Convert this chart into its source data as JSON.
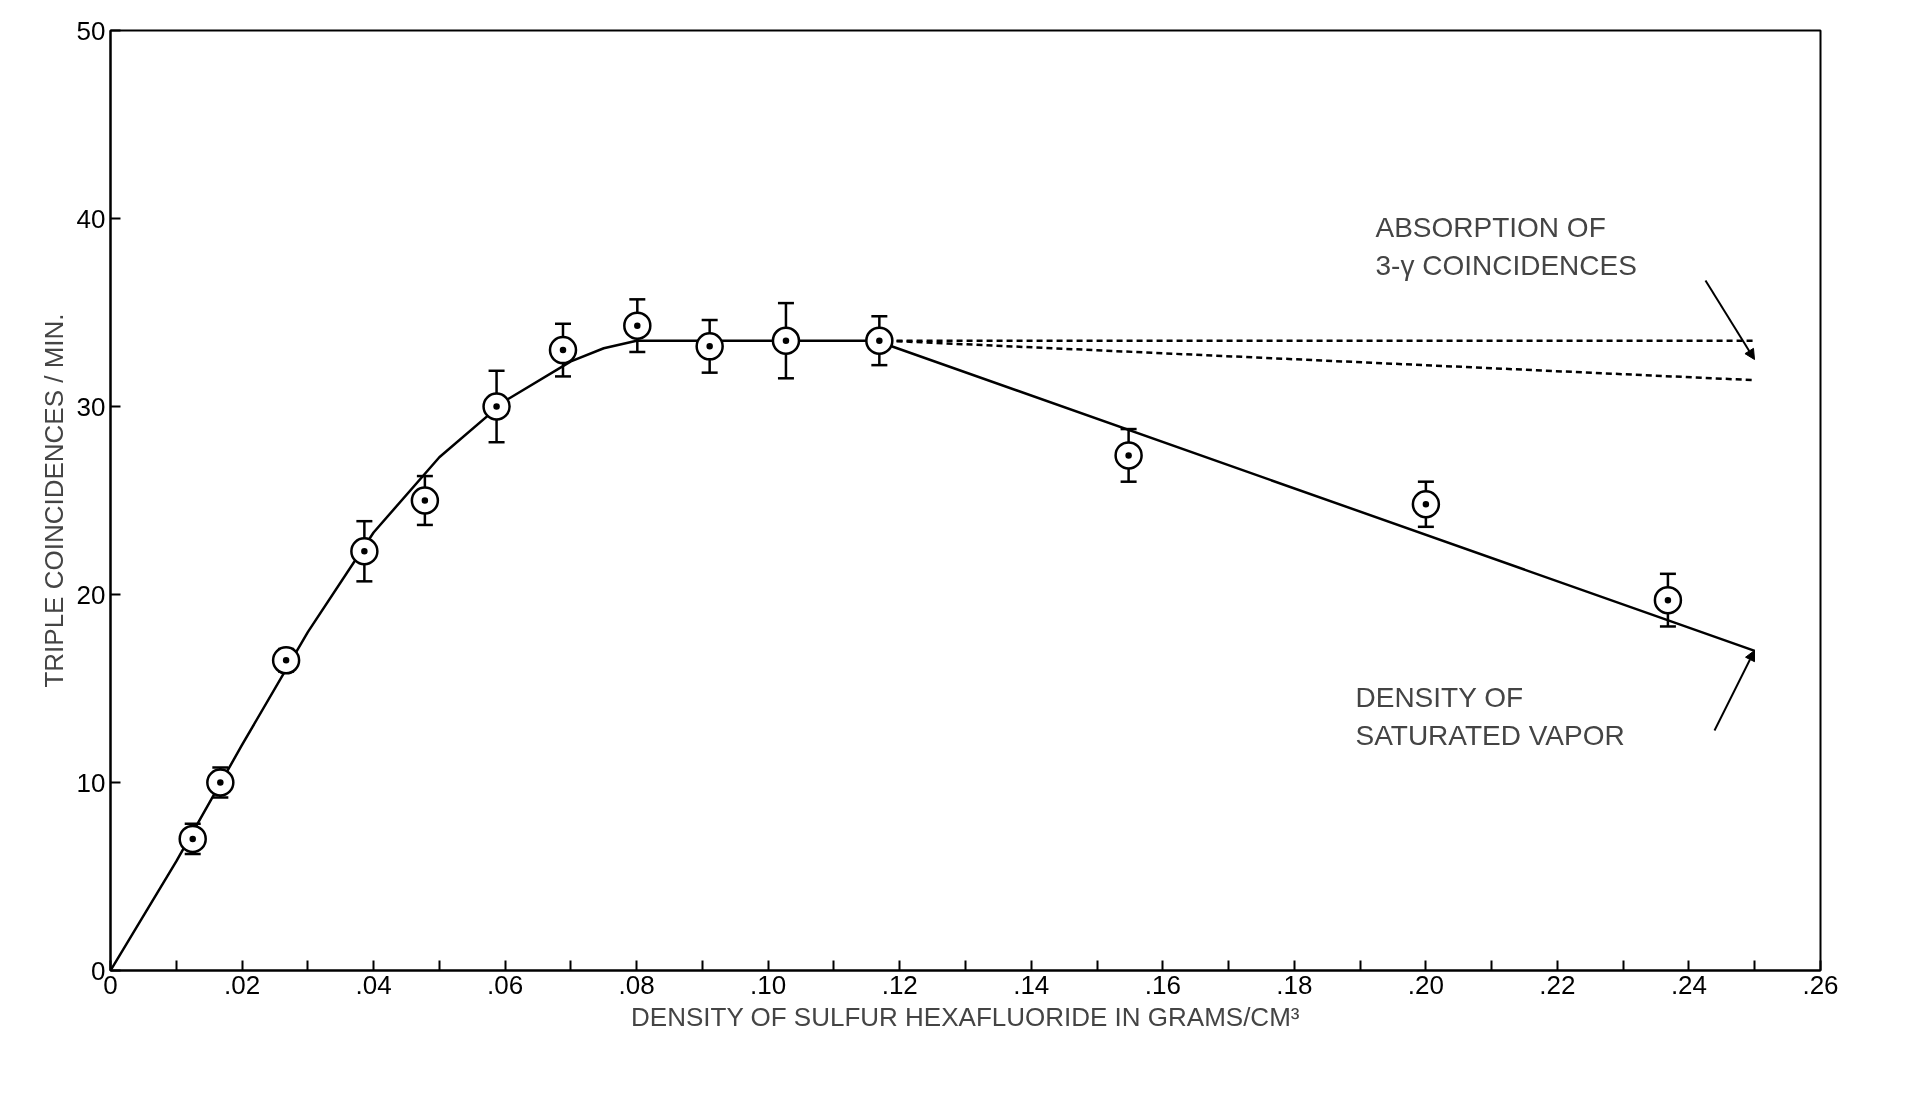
{
  "chart_data": {
    "type": "scatter",
    "xlabel": "DENSITY OF SULFUR HEXAFLUORIDE IN GRAMS/CM³",
    "ylabel": "TRIPLE COINCIDENCES / MIN.",
    "xlim": [
      0,
      0.26
    ],
    "ylim": [
      0,
      50
    ],
    "xticks": [
      {
        "value": 0,
        "label": "0"
      },
      {
        "value": 0.01,
        "label": null
      },
      {
        "value": 0.02,
        "label": ".02"
      },
      {
        "value": 0.03,
        "label": null
      },
      {
        "value": 0.04,
        "label": ".04"
      },
      {
        "value": 0.05,
        "label": null
      },
      {
        "value": 0.06,
        "label": ".06"
      },
      {
        "value": 0.07,
        "label": null
      },
      {
        "value": 0.08,
        "label": ".08"
      },
      {
        "value": 0.09,
        "label": null
      },
      {
        "value": 0.1,
        "label": ".10"
      },
      {
        "value": 0.11,
        "label": null
      },
      {
        "value": 0.12,
        "label": ".12"
      },
      {
        "value": 0.13,
        "label": null
      },
      {
        "value": 0.14,
        "label": ".14"
      },
      {
        "value": 0.15,
        "label": null
      },
      {
        "value": 0.16,
        "label": ".16"
      },
      {
        "value": 0.17,
        "label": null
      },
      {
        "value": 0.18,
        "label": ".18"
      },
      {
        "value": 0.19,
        "label": null
      },
      {
        "value": 0.2,
        "label": ".20"
      },
      {
        "value": 0.21,
        "label": null
      },
      {
        "value": 0.22,
        "label": ".22"
      },
      {
        "value": 0.23,
        "label": null
      },
      {
        "value": 0.24,
        "label": ".24"
      },
      {
        "value": 0.25,
        "label": null
      },
      {
        "value": 0.26,
        "label": ".26"
      }
    ],
    "yticks": [
      0,
      10,
      20,
      30,
      40,
      50
    ],
    "grid": false,
    "series": [
      {
        "marker": "circle",
        "color": "#000000",
        "x": [
          0.0125,
          0.0167,
          0.0267,
          0.0386,
          0.0478,
          0.0587,
          0.0688,
          0.0801,
          0.0911,
          0.1027,
          0.1169,
          0.1548,
          0.2,
          0.2368
        ],
        "values": [
          7.0,
          10.0,
          16.5,
          22.3,
          25.0,
          30.0,
          33.0,
          34.3,
          33.2,
          33.5,
          33.5,
          27.4,
          24.8,
          19.7
        ],
        "errors": [
          0.8,
          0.8,
          0.6,
          1.6,
          1.3,
          1.9,
          1.4,
          1.4,
          1.4,
          2.0,
          1.3,
          1.4,
          1.2,
          1.4
        ]
      },
      {
        "type": "line",
        "color": "#000000",
        "line_style": "solid",
        "x": [
          0,
          0.01,
          0.02,
          0.03,
          0.04,
          0.05,
          0.06,
          0.07,
          0.075,
          0.08,
          0.115,
          0.118,
          0.25
        ],
        "values": [
          0,
          5.8,
          12,
          18,
          23.3,
          27.3,
          30.3,
          32.4,
          33.1,
          33.5,
          33.5,
          33.3,
          17.0
        ]
      },
      {
        "type": "line",
        "color": "#000000",
        "line_style": "dashed",
        "x": [
          0.118,
          0.25
        ],
        "values": [
          33.5,
          33.5
        ]
      },
      {
        "type": "line",
        "color": "#000000",
        "line_style": "dashed",
        "x": [
          0.118,
          0.25
        ],
        "values": [
          33.5,
          31.4
        ]
      }
    ],
    "annotations": [
      "ABSORPTION OF\n3-γ COINCIDENCES",
      "DENSITY OF\nSATURATED VAPOR"
    ]
  }
}
